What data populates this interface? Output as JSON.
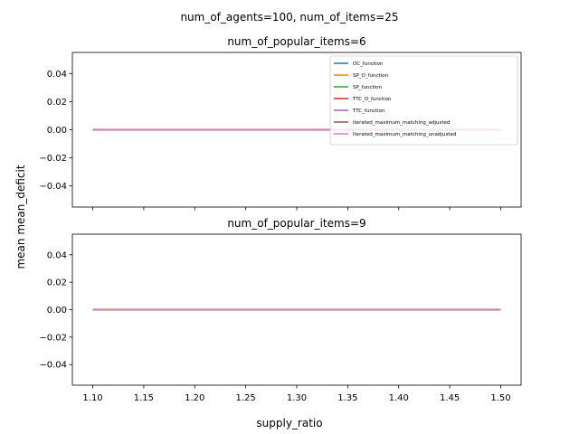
{
  "suptitle": "num_of_agents=100, num_of_items=25",
  "shared_ylabel": "mean mean_deficit",
  "shared_xlabel": "supply_ratio",
  "chart_data": [
    {
      "type": "line",
      "title": "num_of_popular_items=6",
      "xlabel": "",
      "ylabel": "mean mean_deficit",
      "xlim": [
        1.08,
        1.52
      ],
      "ylim": [
        -0.055,
        0.055
      ],
      "x_ticks": [
        1.1,
        1.15,
        1.2,
        1.25,
        1.3,
        1.35,
        1.4,
        1.45,
        1.5
      ],
      "x_tick_labels_visible": false,
      "y_ticks": [
        0.04,
        0.02,
        0.0,
        -0.02,
        -0.04
      ],
      "y_tick_labels": [
        "0.04",
        "0.02",
        "0.00",
        "−0.02",
        "−0.04"
      ],
      "grid": false,
      "legend_position": "top-right",
      "x": [
        1.1,
        1.15,
        1.2,
        1.25,
        1.3,
        1.35,
        1.4,
        1.45,
        1.5
      ],
      "series": [
        {
          "name": "OC_function",
          "color": "#1f77b4",
          "values": [
            0,
            0,
            0,
            0,
            0,
            0,
            0,
            0,
            0
          ]
        },
        {
          "name": "SP_O_function",
          "color": "#ff7f0e",
          "values": [
            0,
            0,
            0,
            0,
            0,
            0,
            0,
            0,
            0
          ]
        },
        {
          "name": "SP_function",
          "color": "#2ca02c",
          "values": [
            0,
            0,
            0,
            0,
            0,
            0,
            0,
            0,
            0
          ]
        },
        {
          "name": "TTC_O_function",
          "color": "#d62728",
          "values": [
            0,
            0,
            0,
            0,
            0,
            0,
            0,
            0,
            0
          ]
        },
        {
          "name": "TTC_function",
          "color": "#9467bd",
          "values": [
            0,
            0,
            0,
            0,
            0,
            0,
            0,
            0,
            0
          ]
        },
        {
          "name": "iterated_maximum_matching_adjusted",
          "color": "#8c564b",
          "values": [
            0,
            0,
            0,
            0,
            0,
            0,
            0,
            0,
            0
          ]
        },
        {
          "name": "iterated_maximum_matching_unadjusted",
          "color": "#e377c2",
          "values": [
            0,
            0,
            0,
            0,
            0,
            0,
            0,
            0,
            0
          ]
        }
      ]
    },
    {
      "type": "line",
      "title": "num_of_popular_items=9",
      "xlabel": "supply_ratio",
      "ylabel": "mean mean_deficit",
      "xlim": [
        1.08,
        1.52
      ],
      "ylim": [
        -0.055,
        0.055
      ],
      "x_ticks": [
        1.1,
        1.15,
        1.2,
        1.25,
        1.3,
        1.35,
        1.4,
        1.45,
        1.5
      ],
      "x_tick_labels": [
        "1.10",
        "1.15",
        "1.20",
        "1.25",
        "1.30",
        "1.35",
        "1.40",
        "1.45",
        "1.50"
      ],
      "x_tick_labels_visible": true,
      "y_ticks": [
        0.04,
        0.02,
        0.0,
        -0.02,
        -0.04
      ],
      "y_tick_labels": [
        "0.04",
        "0.02",
        "0.00",
        "−0.02",
        "−0.04"
      ],
      "grid": false,
      "legend_position": "none",
      "x": [
        1.1,
        1.15,
        1.2,
        1.25,
        1.3,
        1.35,
        1.4,
        1.45,
        1.5
      ],
      "series": [
        {
          "name": "OC_function",
          "color": "#1f77b4",
          "values": [
            0,
            0,
            0,
            0,
            0,
            0,
            0,
            0,
            0
          ]
        },
        {
          "name": "SP_O_function",
          "color": "#ff7f0e",
          "values": [
            0,
            0,
            0,
            0,
            0,
            0,
            0,
            0,
            0
          ]
        },
        {
          "name": "SP_function",
          "color": "#2ca02c",
          "values": [
            0,
            0,
            0,
            0,
            0,
            0,
            0,
            0,
            0
          ]
        },
        {
          "name": "TTC_O_function",
          "color": "#d62728",
          "values": [
            0,
            0,
            0,
            0,
            0,
            0,
            0,
            0,
            0
          ]
        },
        {
          "name": "TTC_function",
          "color": "#9467bd",
          "values": [
            0,
            0,
            0,
            0,
            0,
            0,
            0,
            0,
            0
          ]
        },
        {
          "name": "iterated_maximum_matching_adjusted",
          "color": "#8c564b",
          "values": [
            0,
            0,
            0,
            0,
            0,
            0,
            0,
            0,
            0
          ]
        },
        {
          "name": "iterated_maximum_matching_unadjusted",
          "color": "#e377c2",
          "values": [
            0,
            0,
            0,
            0,
            0,
            0,
            0,
            0,
            0
          ]
        }
      ]
    }
  ]
}
